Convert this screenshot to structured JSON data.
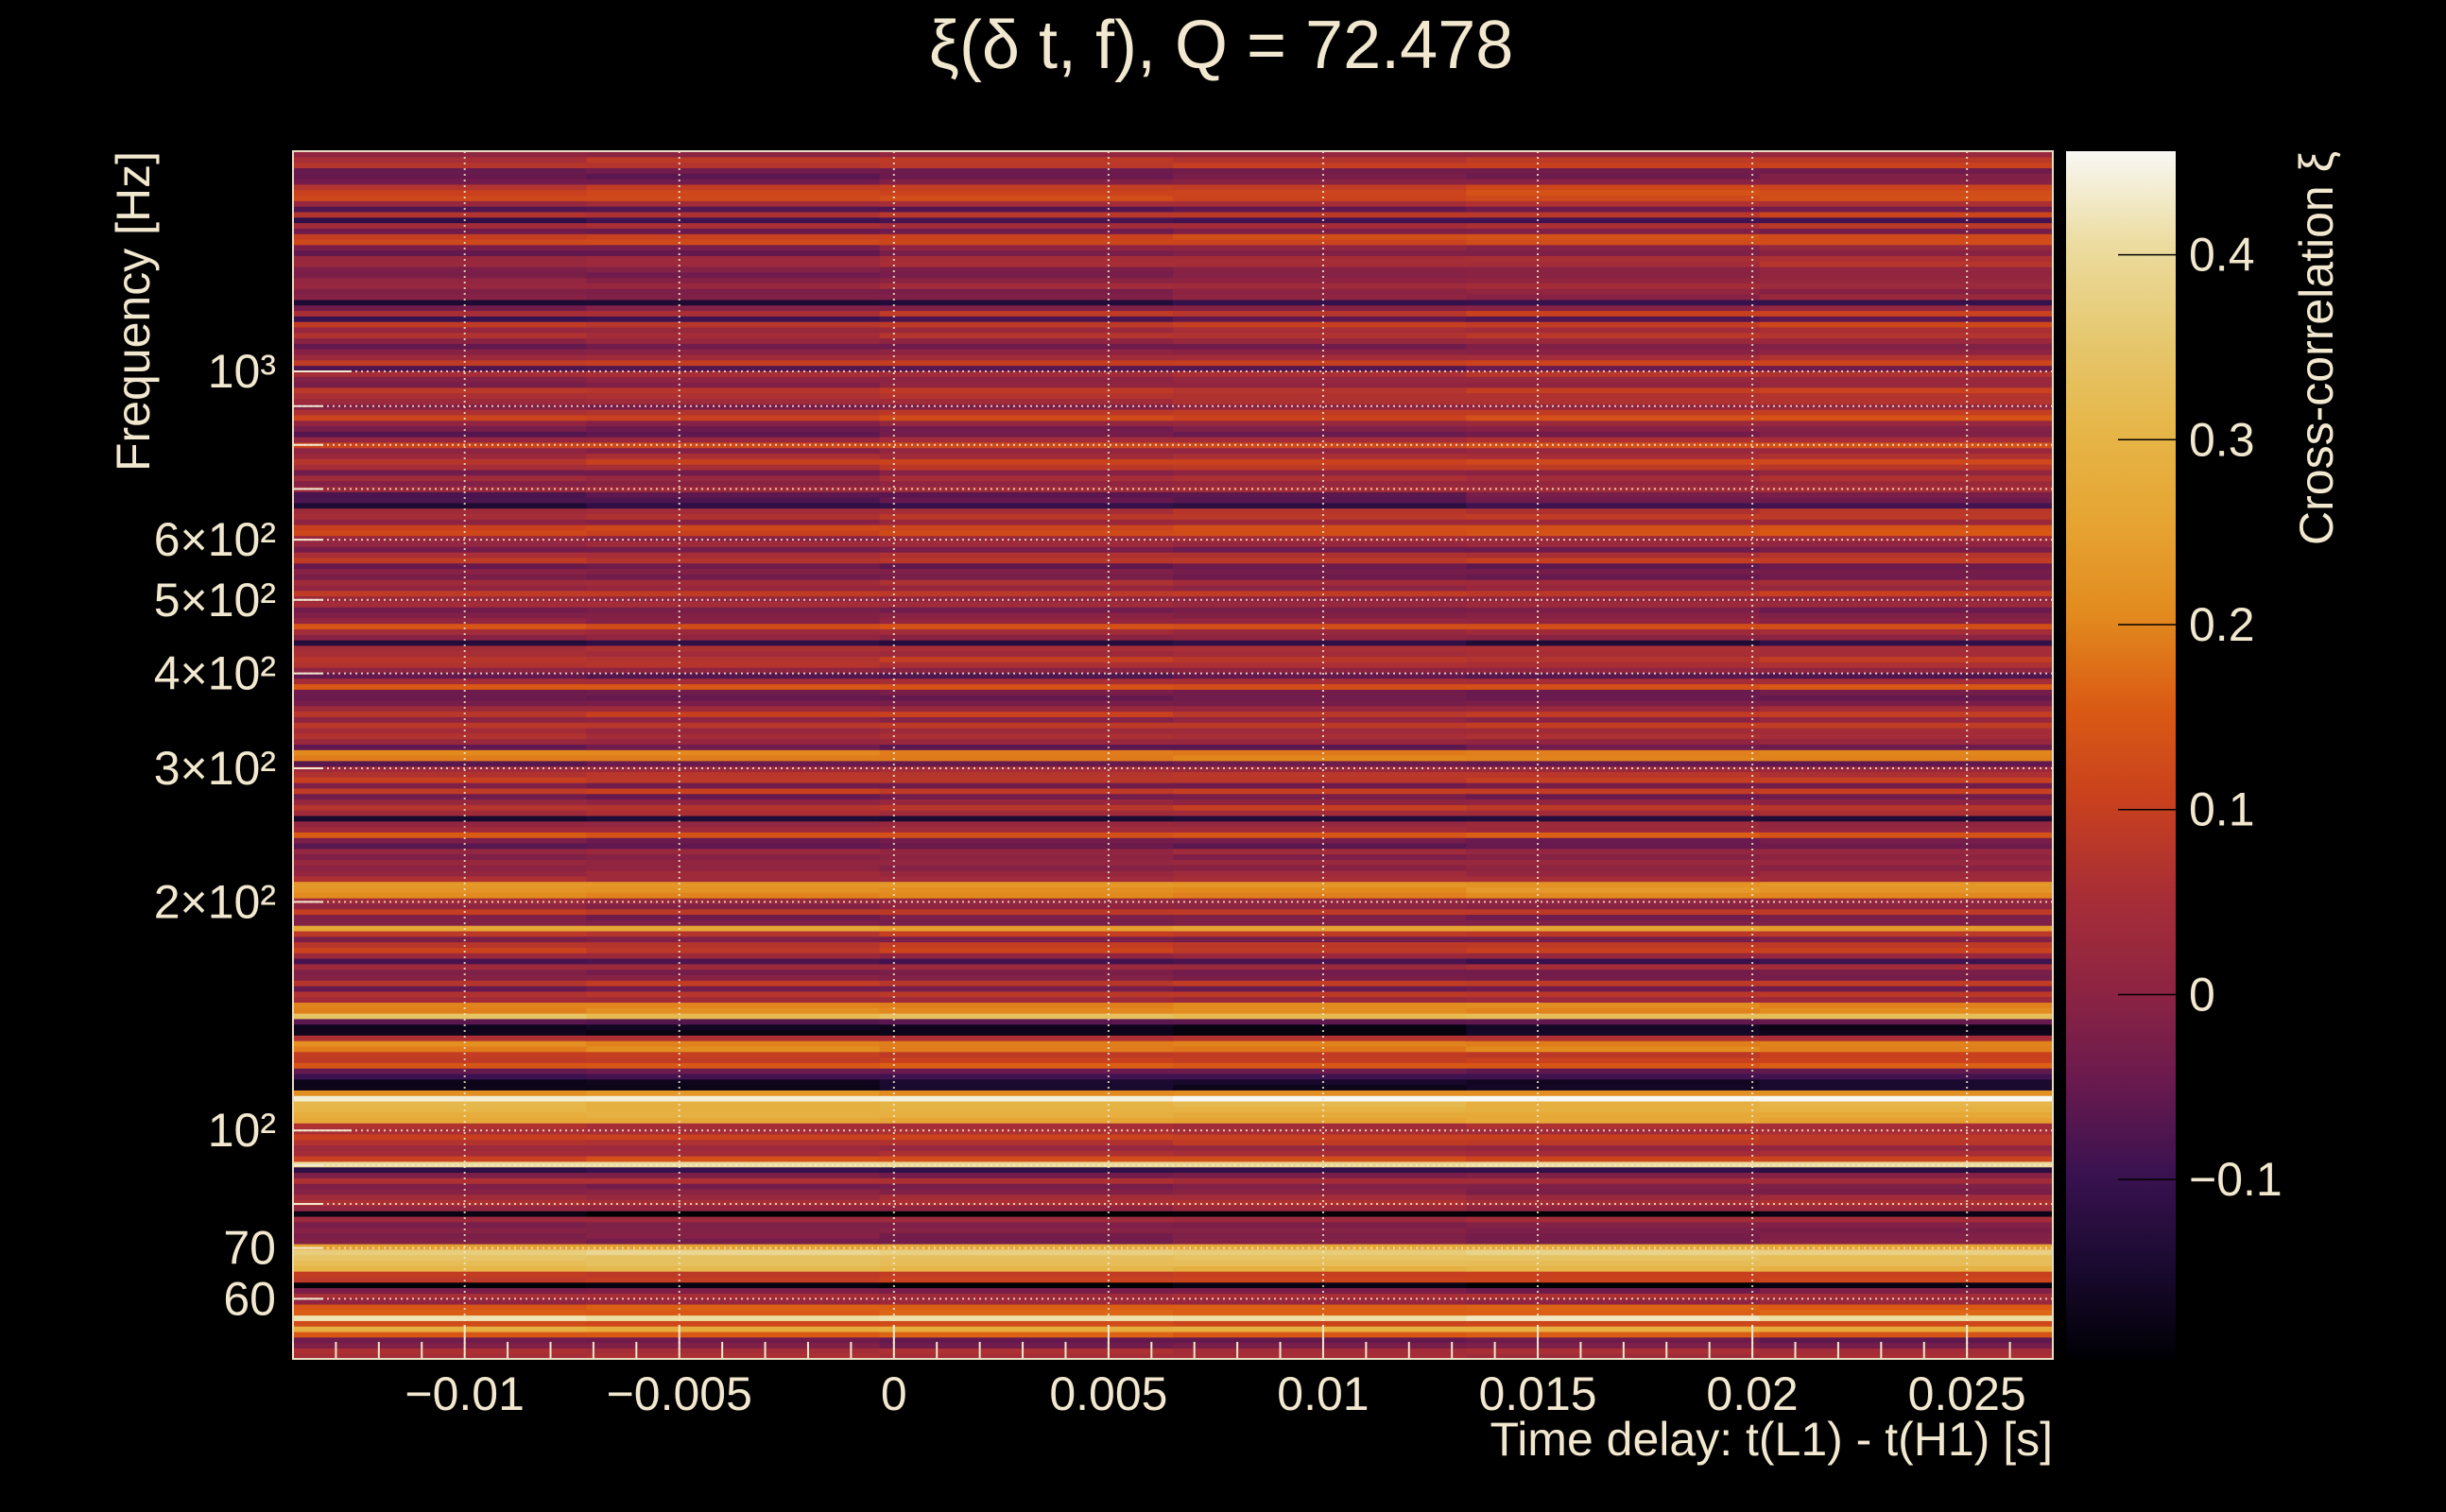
{
  "chart_data": {
    "type": "heatmap",
    "title": "ξ(δ t, f), Q = 72.478",
    "xlabel": "Time delay: t(L1) - t(H1) [s]",
    "ylabel": "Frequency [Hz]",
    "colorbar_label": "Cross-correlation ξ",
    "xlim": [
      -0.014,
      0.027
    ],
    "ylim": [
      50,
      1950
    ],
    "yscale": "log",
    "clim": [
      -0.197,
      0.456
    ],
    "xticks": [
      {
        "value": -0.01,
        "label": "−0.01"
      },
      {
        "value": -0.005,
        "label": "−0.005"
      },
      {
        "value": 0,
        "label": "0"
      },
      {
        "value": 0.005,
        "label": "0.005"
      },
      {
        "value": 0.01,
        "label": "0.01"
      },
      {
        "value": 0.015,
        "label": "0.015"
      },
      {
        "value": 0.02,
        "label": "0.02"
      },
      {
        "value": 0.025,
        "label": "0.025"
      }
    ],
    "yticks": [
      {
        "value": 60,
        "label": "60"
      },
      {
        "value": 70,
        "label": "70"
      },
      {
        "value": 80,
        "label": ""
      },
      {
        "value": 90,
        "label": ""
      },
      {
        "value": 100,
        "label": "10²"
      },
      {
        "value": 200,
        "label": "2×10²"
      },
      {
        "value": 300,
        "label": "3×10²"
      },
      {
        "value": 400,
        "label": "4×10²"
      },
      {
        "value": 500,
        "label": "5×10²"
      },
      {
        "value": 600,
        "label": "6×10²"
      },
      {
        "value": 700,
        "label": ""
      },
      {
        "value": 800,
        "label": ""
      },
      {
        "value": 900,
        "label": ""
      },
      {
        "value": 1000,
        "label": "10³"
      }
    ],
    "cticks": [
      {
        "value": -0.1,
        "label": "−0.1"
      },
      {
        "value": 0,
        "label": "0"
      },
      {
        "value": 0.1,
        "label": "0.1"
      },
      {
        "value": 0.2,
        "label": "0.2"
      },
      {
        "value": 0.3,
        "label": "0.3"
      },
      {
        "value": 0.4,
        "label": "0.4"
      }
    ],
    "grid": true,
    "colormap": [
      "#000004",
      "#1a0a30",
      "#3a1250",
      "#6a1a4e",
      "#8e2442",
      "#a82e36",
      "#c8401e",
      "#da5a14",
      "#e28a1e",
      "#e6a432",
      "#e6b648",
      "#e6c870",
      "#ecdca0",
      "#f8f8f4"
    ],
    "bands": [
      {
        "freq": 53,
        "value": -0.05
      },
      {
        "freq": 54,
        "value": 0.15
      },
      {
        "freq": 55,
        "value": 0.28
      },
      {
        "freq": 56.2,
        "value": 0.12
      },
      {
        "freq": 57,
        "value": 0.42
      },
      {
        "freq": 58,
        "value": 0.16
      },
      {
        "freq": 63,
        "value": -0.19
      },
      {
        "freq": 64,
        "value": 0.1
      },
      {
        "freq": 66,
        "value": 0.3
      },
      {
        "freq": 67.5,
        "value": 0.33
      },
      {
        "freq": 69,
        "value": 0.38
      },
      {
        "freq": 70.3,
        "value": 0.26
      },
      {
        "freq": 78,
        "value": -0.19
      },
      {
        "freq": 90.5,
        "value": 0.4
      },
      {
        "freq": 91.5,
        "value": 0.12
      },
      {
        "freq": 101,
        "value": 0.05
      },
      {
        "freq": 104,
        "value": 0.26
      },
      {
        "freq": 106,
        "value": 0.28
      },
      {
        "freq": 108,
        "value": 0.3
      },
      {
        "freq": 110,
        "value": 0.45
      },
      {
        "freq": 112,
        "value": 0.22
      },
      {
        "freq": 115,
        "value": -0.16
      },
      {
        "freq": 122,
        "value": 0.15
      },
      {
        "freq": 129,
        "value": 0.2
      },
      {
        "freq": 136,
        "value": -0.17
      },
      {
        "freq": 143,
        "value": 0.33
      },
      {
        "freq": 145,
        "value": 0.2
      },
      {
        "freq": 185,
        "value": 0.25
      },
      {
        "freq": 205,
        "value": 0.2
      },
      {
        "freq": 210,
        "value": 0.22
      },
      {
        "freq": 245,
        "value": 0.15
      },
      {
        "freq": 310,
        "value": 0.2
      },
      {
        "freq": 312,
        "value": 0.2
      },
      {
        "freq": 385,
        "value": 0.14
      },
      {
        "freq": 460,
        "value": 0.14
      },
      {
        "freq": 620,
        "value": 0.12
      },
      {
        "freq": 800,
        "value": 0.13
      },
      {
        "freq": 870,
        "value": 0.12
      },
      {
        "freq": 1500,
        "value": 0.12
      },
      {
        "freq": 1700,
        "value": 0.12
      }
    ]
  }
}
